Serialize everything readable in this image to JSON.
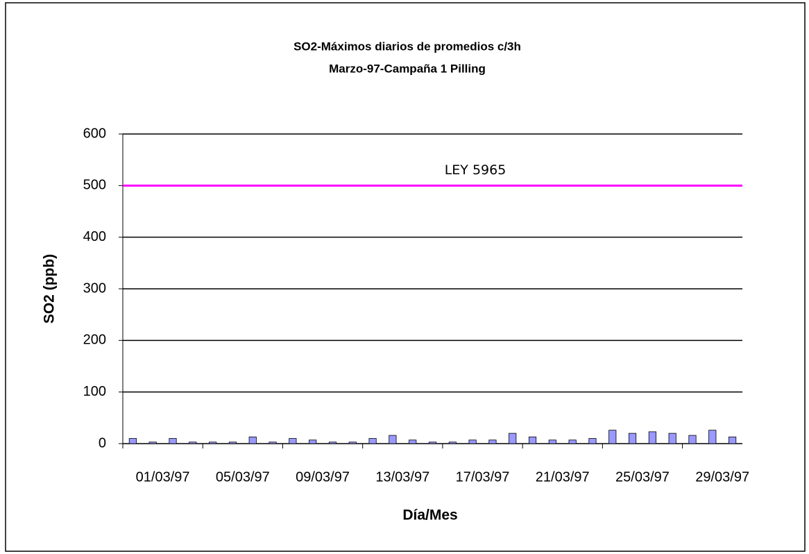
{
  "chart_data": {
    "type": "bar",
    "title": "SO2-Máximos diarios de promedios c/3h",
    "subtitle": "Marzo-97-Campaña 1 Pilling",
    "y_label": "SO2 (ppb)",
    "x_label": "Día/Mes",
    "categories": [
      "01/03/97",
      null,
      null,
      null,
      "05/03/97",
      null,
      null,
      null,
      "09/03/97",
      null,
      null,
      null,
      "13/03/97",
      null,
      null,
      null,
      "17/03/97",
      null,
      null,
      null,
      "21/03/97",
      null,
      null,
      null,
      "25/03/97",
      null,
      null,
      null,
      "29/03/97",
      null,
      null
    ],
    "values": [
      10,
      3,
      10,
      3,
      3,
      3,
      13,
      3,
      10,
      7,
      3,
      3,
      10,
      16,
      7,
      3,
      3,
      7,
      7,
      20,
      13,
      7,
      7,
      10,
      26,
      20,
      23,
      20,
      16,
      26,
      13
    ],
    "color": "#9999ff",
    "reference_line": {
      "value": 500,
      "label": "LEY 5965",
      "color": "#ff00ff"
    },
    "ylim": [
      0,
      600
    ],
    "yticks": [
      0,
      100,
      200,
      300,
      400,
      500,
      600
    ],
    "grid": true
  }
}
